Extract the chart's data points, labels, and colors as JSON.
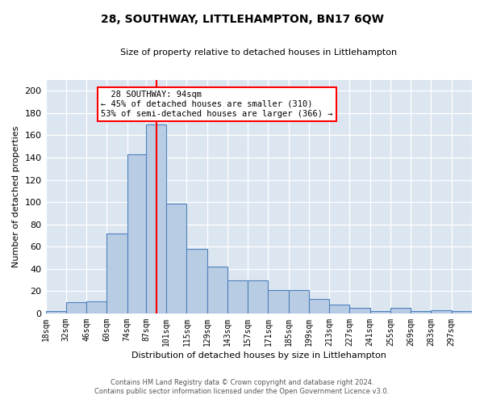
{
  "title": "28, SOUTHWAY, LITTLEHAMPTON, BN17 6QW",
  "subtitle": "Size of property relative to detached houses in Littlehampton",
  "xlabel": "Distribution of detached houses by size in Littlehampton",
  "ylabel": "Number of detached properties",
  "footnote1": "Contains HM Land Registry data © Crown copyright and database right 2024.",
  "footnote2": "Contains public sector information licensed under the Open Government Licence v3.0.",
  "annotation_title": "28 SOUTHWAY: 94sqm",
  "annotation_line1": "← 45% of detached houses are smaller (310)",
  "annotation_line2": "53% of semi-detached houses are larger (366) →",
  "property_line_x": 94,
  "bar_edge_color": "#4f81bd",
  "bar_face_color": "#b8cce4",
  "bar_line_color": "red",
  "fig_bg_color": "#ffffff",
  "plot_bg_color": "#dce6f1",
  "bins": [
    18,
    32,
    46,
    60,
    74,
    87,
    101,
    115,
    129,
    143,
    157,
    171,
    185,
    199,
    213,
    227,
    241,
    255,
    269,
    283,
    297,
    311
  ],
  "values": [
    2,
    10,
    11,
    72,
    143,
    170,
    99,
    58,
    42,
    30,
    30,
    21,
    21,
    13,
    8,
    5,
    2,
    5,
    2,
    3,
    2
  ],
  "ylim": [
    0,
    210
  ],
  "yticks": [
    0,
    20,
    40,
    60,
    80,
    100,
    120,
    140,
    160,
    180,
    200
  ],
  "xtick_labels": [
    "18sqm",
    "32sqm",
    "46sqm",
    "60sqm",
    "74sqm",
    "87sqm",
    "101sqm",
    "115sqm",
    "129sqm",
    "143sqm",
    "157sqm",
    "171sqm",
    "185sqm",
    "199sqm",
    "213sqm",
    "227sqm",
    "241sqm",
    "255sqm",
    "269sqm",
    "283sqm",
    "297sqm"
  ]
}
